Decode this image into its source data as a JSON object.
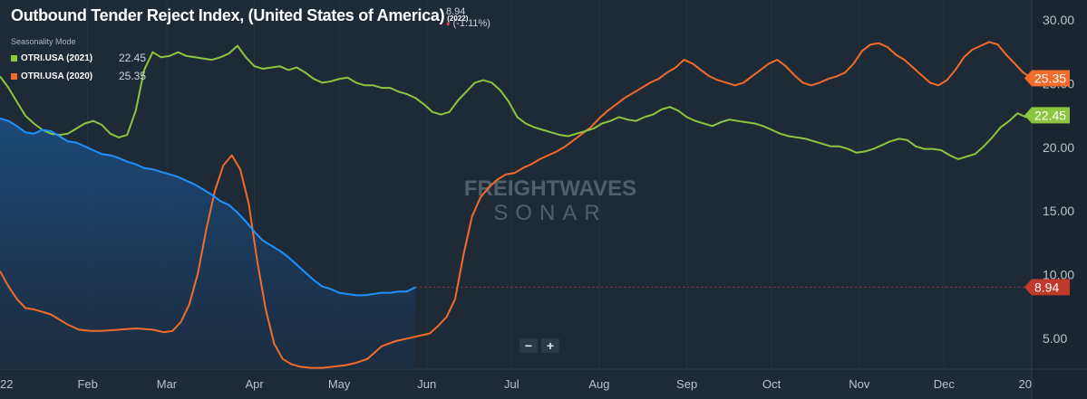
{
  "header": {
    "title": "Outbound Tender Reject Index, (United States of America)",
    "title_year": "(2022)",
    "current_value": "8.94",
    "change": "(-1.11%)",
    "seasonality_mode": "Seasonality Mode"
  },
  "legend": [
    {
      "name": "OTRI.USA (2021)",
      "value": "22.45",
      "color": "#8cc63f"
    },
    {
      "name": "OTRI.USA (2020)",
      "value": "25.35",
      "color": "#f26b2a"
    }
  ],
  "watermark": {
    "line1": "FREIGHTWAVES",
    "line2": "SONAR"
  },
  "zoom": {
    "minus": "−",
    "plus": "+"
  },
  "colors": {
    "background": "#1e2a36",
    "series_2022": "#1e90ff",
    "series_2021": "#8cc63f",
    "series_2020": "#f26b2a",
    "current_tag": "#c0392b"
  },
  "chart_data": {
    "type": "line",
    "x_unit": "days since start of year",
    "x_ticks": [
      {
        "x": 0,
        "label": "22"
      },
      {
        "x": 31,
        "label": "Feb"
      },
      {
        "x": 59,
        "label": "Mar"
      },
      {
        "x": 90,
        "label": "Apr"
      },
      {
        "x": 120,
        "label": "May"
      },
      {
        "x": 151,
        "label": "Jun"
      },
      {
        "x": 181,
        "label": "Jul"
      },
      {
        "x": 212,
        "label": "Aug"
      },
      {
        "x": 243,
        "label": "Sep"
      },
      {
        "x": 273,
        "label": "Oct"
      },
      {
        "x": 304,
        "label": "Nov"
      },
      {
        "x": 334,
        "label": "Dec"
      },
      {
        "x": 365,
        "label": "20"
      }
    ],
    "y_ticks": [
      5,
      10,
      15,
      20,
      25,
      30
    ],
    "y_tick_labels": [
      "5.00",
      "10.00",
      "15.00",
      "20.00",
      "25.00",
      "30.00"
    ],
    "xlim": [
      0,
      365
    ],
    "ylim": [
      2.5,
      31.5
    ],
    "reference_value": 8.94,
    "reference_label": "8.94",
    "series": [
      {
        "name": "OTRI.USA (2020)",
        "color": "#f26b2a",
        "end_label": "25.35",
        "x": [
          0,
          3,
          6,
          9,
          12,
          18,
          24,
          28,
          32,
          36,
          42,
          48,
          54,
          58,
          61,
          64,
          67,
          70,
          73,
          76,
          79,
          82,
          85,
          88,
          91,
          94,
          97,
          100,
          103,
          106,
          110,
          114,
          118,
          122,
          126,
          130,
          135,
          140,
          144,
          148,
          152,
          155,
          158,
          161,
          164,
          167,
          170,
          173,
          176,
          179,
          182,
          185,
          188,
          191,
          194,
          197,
          200,
          203,
          206,
          209,
          212,
          215,
          218,
          221,
          224,
          227,
          230,
          233,
          236,
          239,
          242,
          245,
          248,
          251,
          254,
          257,
          260,
          263,
          266,
          269,
          272,
          275,
          278,
          281,
          284,
          287,
          290,
          293,
          296,
          299,
          302,
          305,
          308,
          311,
          314,
          317,
          320,
          323,
          326,
          329,
          332,
          335,
          338,
          341,
          344,
          347,
          350,
          353,
          356,
          359,
          362,
          365
        ],
        "y": [
          10.2,
          9.0,
          8.0,
          7.3,
          7.2,
          6.8,
          6.0,
          5.6,
          5.5,
          5.5,
          5.6,
          5.7,
          5.6,
          5.4,
          5.5,
          6.2,
          7.6,
          10.0,
          13.5,
          16.5,
          18.5,
          19.3,
          18.2,
          15.5,
          11.0,
          7.2,
          4.5,
          3.3,
          2.9,
          2.7,
          2.6,
          2.6,
          2.7,
          2.8,
          3.0,
          3.3,
          4.3,
          4.7,
          4.9,
          5.1,
          5.3,
          5.9,
          6.6,
          8.0,
          11.5,
          14.5,
          16.0,
          16.8,
          17.4,
          17.8,
          17.9,
          18.3,
          18.6,
          19.0,
          19.3,
          19.6,
          20.0,
          20.5,
          21.0,
          21.5,
          22.2,
          22.8,
          23.3,
          23.8,
          24.2,
          24.6,
          25.0,
          25.3,
          25.8,
          26.2,
          26.8,
          26.5,
          26.0,
          25.5,
          25.2,
          25.0,
          24.8,
          25.0,
          25.5,
          26.0,
          26.5,
          26.8,
          26.3,
          25.6,
          25.0,
          24.8,
          25.0,
          25.3,
          25.5,
          25.8,
          26.5,
          27.5,
          28.0,
          28.1,
          27.8,
          27.2,
          26.8,
          26.2,
          25.6,
          25.0,
          24.8,
          25.2,
          26.0,
          27.0,
          27.6,
          27.9,
          28.2,
          28.0,
          27.2,
          26.5,
          25.8,
          25.35
        ]
      },
      {
        "name": "OTRI.USA (2021)",
        "color": "#8cc63f",
        "end_label": "22.45",
        "x": [
          0,
          3,
          6,
          9,
          12,
          15,
          18,
          21,
          24,
          27,
          30,
          33,
          36,
          39,
          42,
          45,
          48,
          51,
          54,
          57,
          60,
          63,
          66,
          69,
          72,
          75,
          78,
          81,
          84,
          87,
          90,
          93,
          96,
          99,
          102,
          105,
          108,
          111,
          114,
          117,
          120,
          123,
          126,
          129,
          132,
          135,
          138,
          141,
          144,
          147,
          150,
          153,
          156,
          159,
          162,
          165,
          168,
          171,
          174,
          177,
          180,
          183,
          186,
          189,
          192,
          195,
          198,
          201,
          204,
          207,
          210,
          213,
          216,
          219,
          222,
          225,
          228,
          231,
          234,
          237,
          240,
          243,
          246,
          249,
          252,
          255,
          258,
          261,
          264,
          267,
          270,
          273,
          276,
          279,
          282,
          285,
          288,
          291,
          294,
          297,
          300,
          303,
          306,
          309,
          312,
          315,
          318,
          321,
          324,
          327,
          330,
          333,
          336,
          339,
          342,
          345,
          348,
          351,
          354,
          357,
          360,
          363,
          365
        ],
        "y": [
          25.5,
          24.6,
          23.5,
          22.4,
          21.8,
          21.3,
          21.0,
          20.9,
          21.0,
          21.4,
          21.8,
          22.0,
          21.7,
          21.0,
          20.7,
          20.9,
          22.8,
          26.0,
          27.4,
          27.0,
          27.1,
          27.4,
          27.1,
          27.0,
          26.9,
          26.8,
          27.0,
          27.3,
          27.9,
          27.0,
          26.3,
          26.1,
          26.2,
          26.3,
          26.0,
          26.2,
          25.8,
          25.3,
          25.0,
          25.1,
          25.3,
          25.4,
          25.0,
          24.8,
          24.8,
          24.6,
          24.6,
          24.3,
          24.1,
          23.8,
          23.3,
          22.7,
          22.5,
          22.7,
          23.6,
          24.3,
          25.0,
          25.2,
          25.0,
          24.4,
          23.5,
          22.3,
          21.8,
          21.5,
          21.3,
          21.1,
          20.9,
          20.8,
          21.0,
          21.2,
          21.4,
          21.8,
          22.0,
          22.3,
          22.1,
          22.0,
          22.3,
          22.5,
          22.9,
          23.1,
          22.8,
          22.3,
          22.0,
          21.8,
          21.6,
          21.9,
          22.1,
          22.0,
          21.9,
          21.8,
          21.6,
          21.3,
          21.0,
          20.8,
          20.7,
          20.6,
          20.4,
          20.2,
          20.0,
          20.0,
          19.8,
          19.5,
          19.6,
          19.8,
          20.1,
          20.4,
          20.6,
          20.5,
          20.0,
          19.8,
          19.8,
          19.7,
          19.3,
          19.0,
          19.2,
          19.4,
          20.0,
          20.7,
          21.5,
          22.0,
          22.6,
          22.3,
          22.45
        ]
      },
      {
        "name": "OTRI.USA (2022)",
        "color": "#1e90ff",
        "end_label": "8.94",
        "x": [
          0,
          3,
          6,
          9,
          12,
          15,
          18,
          21,
          24,
          27,
          30,
          33,
          36,
          39,
          42,
          45,
          48,
          51,
          54,
          57,
          60,
          63,
          66,
          69,
          72,
          75,
          78,
          81,
          84,
          87,
          90,
          93,
          96,
          99,
          102,
          105,
          108,
          111,
          114,
          117,
          120,
          123,
          126,
          129,
          132,
          135,
          138,
          141,
          144,
          147
        ],
        "y": [
          22.2,
          22.0,
          21.6,
          21.1,
          21.0,
          21.3,
          21.2,
          20.8,
          20.4,
          20.3,
          20.0,
          19.7,
          19.4,
          19.3,
          19.1,
          18.8,
          18.6,
          18.3,
          18.2,
          18.0,
          17.8,
          17.6,
          17.3,
          17.0,
          16.6,
          16.2,
          15.7,
          15.4,
          14.8,
          14.1,
          13.3,
          12.6,
          12.2,
          11.8,
          11.3,
          10.7,
          10.1,
          9.5,
          9.0,
          8.8,
          8.5,
          8.4,
          8.3,
          8.3,
          8.4,
          8.5,
          8.5,
          8.6,
          8.6,
          8.94
        ]
      }
    ]
  }
}
